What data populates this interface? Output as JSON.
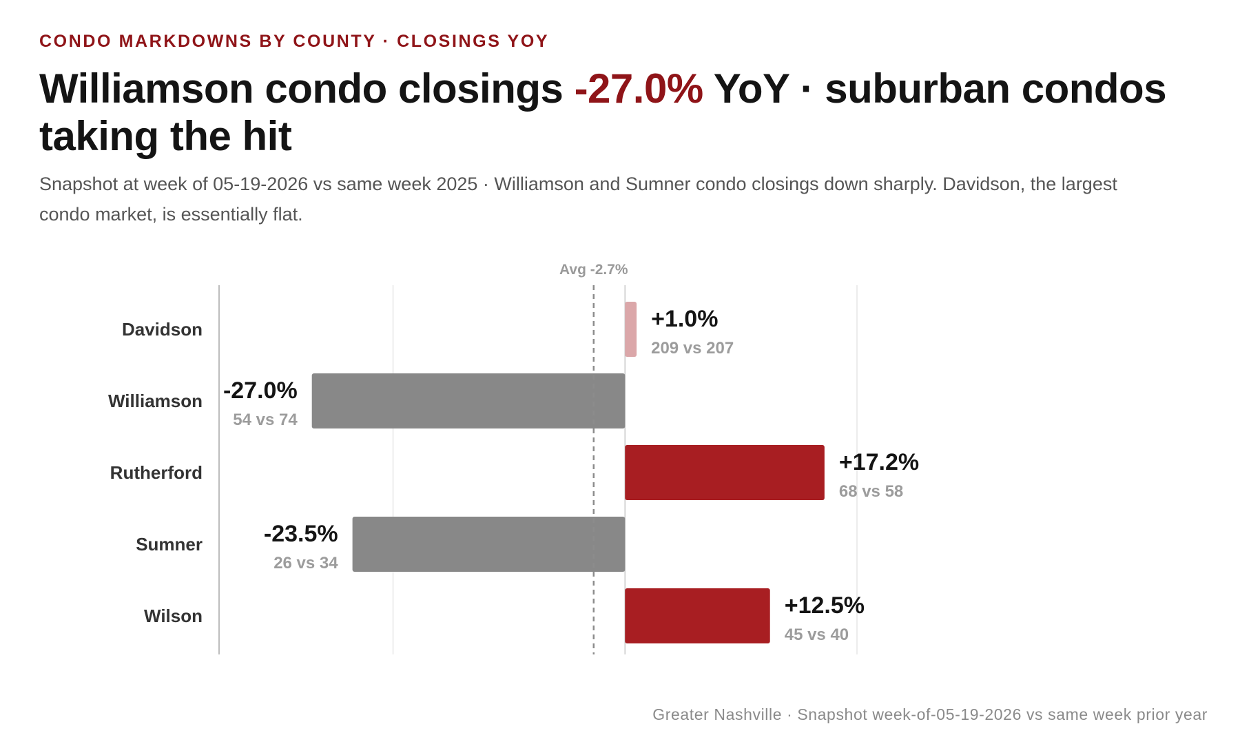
{
  "kicker": "CONDO MARKDOWNS BY COUNTY · CLOSINGS YOY",
  "headline": {
    "before": "Williamson condo closings ",
    "accent": "-27.0%",
    "after": " YoY · suburban condos taking the hit"
  },
  "subtitle": "Snapshot at week of 05-19-2026 vs same week 2025 · Williamson and Sumner condo closings down sharply. Davidson, the largest condo market, is essentially flat.",
  "footer": "Greater Nashville · Snapshot week-of-05-19-2026 vs same week prior year",
  "colors": {
    "accent": "#8f1418",
    "positive": "#a81e22",
    "positive_light": "#dba7a9",
    "negative": "#888888",
    "text": "#141414",
    "muted": "#999999"
  },
  "chart_data": {
    "type": "bar",
    "orientation": "horizontal",
    "categories": [
      "Davidson",
      "Williamson",
      "Rutherford",
      "Sumner",
      "Wilson"
    ],
    "values": [
      1.0,
      -27.0,
      17.2,
      -23.5,
      12.5
    ],
    "value_labels": [
      "+1.0%",
      "-27.0%",
      "+17.2%",
      "-23.5%",
      "+12.5%"
    ],
    "detail_labels": [
      "209 vs 207",
      "54 vs 74",
      "68 vs 58",
      "26 vs 34",
      "45 vs 40"
    ],
    "bar_colors": [
      "#dba7a9",
      "#888888",
      "#a81e22",
      "#888888",
      "#a81e22"
    ],
    "reference_line": {
      "value": -2.7,
      "label": "Avg -2.7%",
      "style": "dashed"
    },
    "xlim": [
      -35,
      20
    ],
    "gridlines": [
      -35,
      -20,
      0,
      20
    ],
    "grid": true,
    "legend": "none",
    "title": "",
    "xlabel": "",
    "ylabel": ""
  }
}
